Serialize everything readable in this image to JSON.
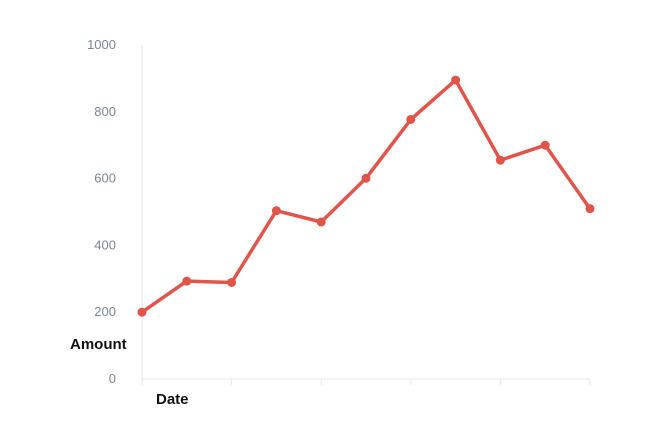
{
  "chart_data": {
    "type": "line",
    "title": "",
    "xlabel": "Date",
    "ylabel": "Amount",
    "ylim": [
      0,
      1000
    ],
    "yticks": [
      "0",
      "200",
      "400",
      "600",
      "800",
      "1000"
    ],
    "grid": false,
    "legend": "none",
    "x_tick_labels_visible": false,
    "series": [
      {
        "color": "#e0544a",
        "values": [
          200,
          293,
          289,
          504,
          470,
          601,
          777,
          895,
          655,
          700,
          510
        ]
      }
    ]
  }
}
